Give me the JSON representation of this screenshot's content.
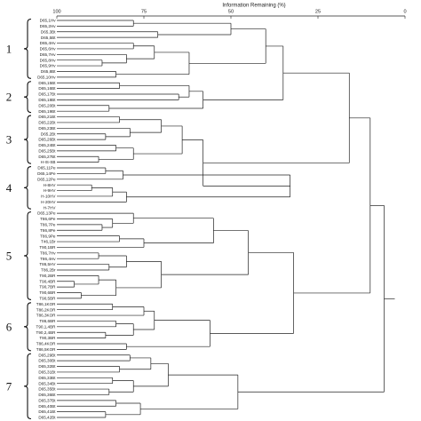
{
  "axis": {
    "title": "Information Remaining (%)",
    "ticks": [
      "100",
      "75",
      "50",
      "25",
      "0"
    ]
  },
  "groups": [
    {
      "label": "1"
    },
    {
      "label": "2"
    },
    {
      "label": "3"
    },
    {
      "label": "4"
    },
    {
      "label": "5"
    },
    {
      "label": "6"
    },
    {
      "label": "7"
    }
  ],
  "leaves": [
    "D65,1Hv",
    "D65,2Hv",
    "D65,3Bt",
    "D65,5Bt",
    "D65,4Hv",
    "D65,6Hv",
    "D65,7Hv",
    "D65,8Hv",
    "D65,9Hv",
    "D65,8Bt",
    "D65,10Hv",
    "D65,15Bt",
    "D65,16Bt",
    "D65,17Bt",
    "D65,18Bt",
    "D65,20Bt",
    "D65,19Bt",
    "D65,21Bt",
    "D65,22Bt",
    "D65,23Bt",
    "D65,2Bt",
    "D65,26Bt",
    "D65,24Bt",
    "D65,25Bt",
    "D65,27Bt",
    "H-IS-SB",
    "D65,11Pe",
    "D65,14Pe",
    "D65,12Pe",
    "H-8HV",
    "H-9HV",
    "H-10HV",
    "H-20HV",
    "H-7HV",
    "D65,13Pe",
    "T86,6Pe",
    "T86,7Pe",
    "T86,8Pe",
    "T86,9Pe",
    "T46,1Br",
    "T90,1BR",
    "T86,7Hv",
    "T86,4Hv",
    "T86,5HV",
    "T86,2Br",
    "T90,2BR",
    "T90,4BR",
    "T90,7BR",
    "T90,6BR",
    "T90,5BR",
    "T86,1KOR",
    "T86,2KOR",
    "T86,3KOR",
    "T86,6BR",
    "T90,1,4BR",
    "T90,2,4BR",
    "T90,3BR",
    "T86,4KOR",
    "T86,5KOR",
    "D65,29Bt",
    "D65,30Bt",
    "D65,32Bt",
    "D65,31Bt",
    "D65,33Bt",
    "D65,34Bt",
    "D65,35Bt",
    "D65,36Bt",
    "D65,37Bt",
    "D65,40Bt",
    "D65,41Bt",
    "D65,42Bt"
  ]
}
